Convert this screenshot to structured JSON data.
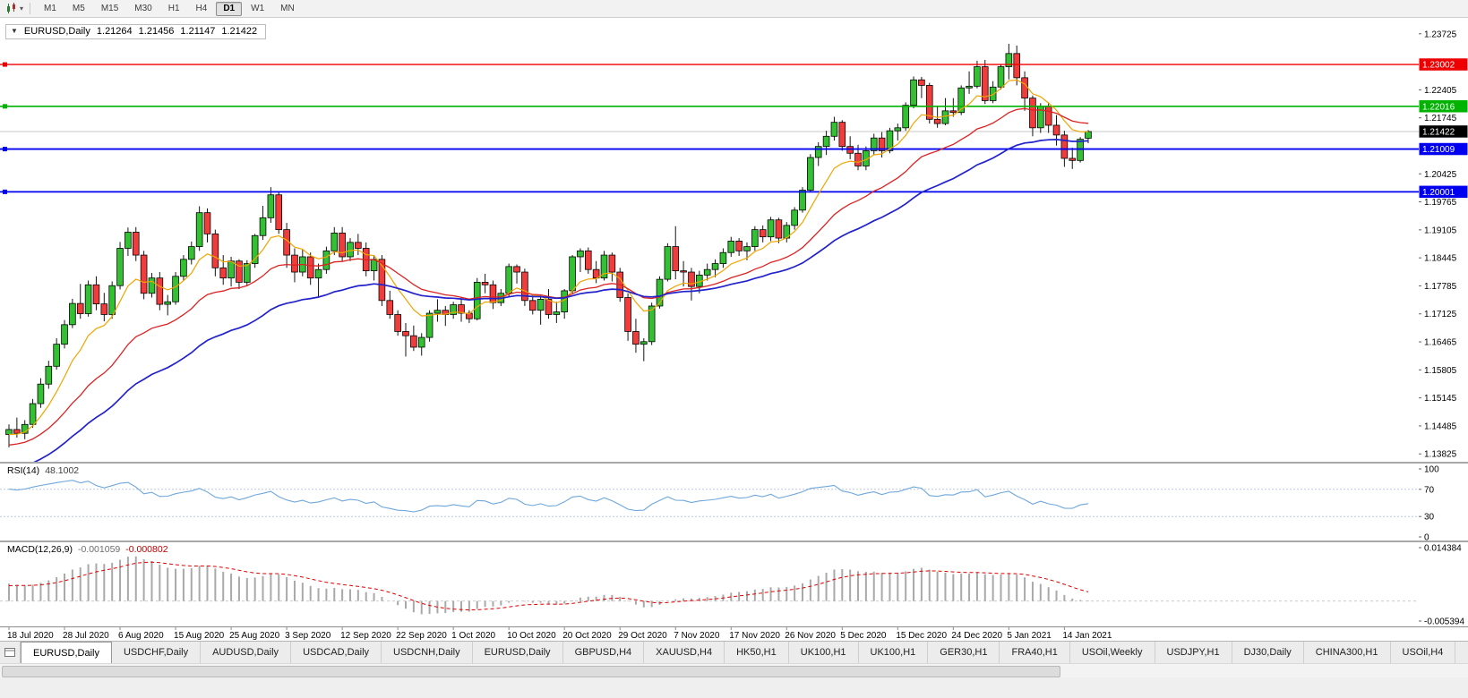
{
  "toolbar": {
    "dropdown_caret": "▾",
    "timeframes": [
      {
        "label": "M1",
        "active": false
      },
      {
        "label": "M5",
        "active": false
      },
      {
        "label": "M15",
        "active": false
      },
      {
        "label": "M30",
        "active": false
      },
      {
        "label": "H1",
        "active": false
      },
      {
        "label": "H4",
        "active": false
      },
      {
        "label": "D1",
        "active": true
      },
      {
        "label": "W1",
        "active": false
      },
      {
        "label": "MN",
        "active": false
      }
    ]
  },
  "chart": {
    "title": {
      "collapse_icon": "▼",
      "symbol_period": "EURUSD,Daily",
      "open": "1.21264",
      "high": "1.21456",
      "low": "1.21147",
      "close": "1.21422"
    },
    "rsi_label": {
      "name": "RSI(14)",
      "value": "48.1002"
    },
    "macd_label": {
      "name": "MACD(12,26,9)",
      "value_main": "-0.001059",
      "value_signal": "-0.000802"
    }
  },
  "chart_data": {
    "type": "candlestick",
    "symbol": "EURUSD",
    "timeframe": "Daily",
    "up_color": "#33c133",
    "down_color": "#f23b3b",
    "x_label_step": 7,
    "x_labels": [
      "18 Jul 2020",
      "28 Jul 2020",
      "6 Aug 2020",
      "15 Aug 2020",
      "25 Aug 2020",
      "3 Sep 2020",
      "12 Sep 2020",
      "22 Sep 2020",
      "1 Oct 2020",
      "10 Oct 2020",
      "20 Oct 2020",
      "29 Oct 2020",
      "7 Nov 2020",
      "17 Nov 2020",
      "26 Nov 2020",
      "5 Dec 2020",
      "15 Dec 2020",
      "24 Dec 2020",
      "5 Jan 2021",
      "14 Jan 2021"
    ],
    "price_axis": {
      "top_price": 1.241,
      "bottom_price": 1.1364,
      "ticks": [
        1.23725,
        1.22405,
        1.21745,
        1.20425,
        1.19765,
        1.19105,
        1.18445,
        1.17785,
        1.17125,
        1.16465,
        1.15805,
        1.15145,
        1.14485,
        1.13825
      ]
    },
    "current_price": 1.21422,
    "current_price_label": "1.21422",
    "current_price_badge_color": "#000000",
    "hlines": [
      {
        "price": 1.23002,
        "label": "1.23002",
        "color": "#ee0000",
        "width": 1.3
      },
      {
        "price": 1.22016,
        "label": "1.22016",
        "color": "#00b300",
        "width": 1.6
      },
      {
        "price": 1.21009,
        "label": "1.21009",
        "color": "#0000f0",
        "width": 1.8
      },
      {
        "price": 1.20001,
        "label": "1.20001",
        "color": "#0000f0",
        "width": 1.8
      }
    ],
    "moving_averages": [
      {
        "name": "ma-fast",
        "color": "#f0a500",
        "period": 8,
        "seed_offset": -0.0015,
        "width": 1.2
      },
      {
        "name": "ma-medium",
        "color": "#dd2222",
        "period": 22,
        "seed_offset": -0.004,
        "width": 1.3
      },
      {
        "name": "ma-slow",
        "color": "#2222cc",
        "period": 40,
        "seed_offset": -0.01,
        "width": 1.7
      }
    ],
    "rsi": {
      "period": 14,
      "color": "#6fa8dc",
      "current": 48.1002,
      "levels": [
        100,
        70,
        30,
        0
      ],
      "level_lines": [
        70,
        30
      ],
      "seed_gain": 0.0028,
      "seed_loss": 0.0012
    },
    "macd": {
      "fast": 12,
      "slow": 26,
      "signal_period": 9,
      "hist_color": "#a9a9a9",
      "signal_color": "#e00000",
      "scale_max": 0.014384,
      "scale_min": -0.005394,
      "scale_labels": [
        "0.014384",
        "-0.005394"
      ],
      "seed_fast_offset": -0.001,
      "seed_slow_offset": -0.006,
      "seed_signal": 0.004,
      "current_main": -0.001059,
      "current_signal": -0.000802
    },
    "candles": [
      [
        1.1428,
        1.1452,
        1.1398,
        1.144
      ],
      [
        1.144,
        1.1468,
        1.1421,
        1.1431
      ],
      [
        1.1431,
        1.1462,
        1.1417,
        1.1452
      ],
      [
        1.1452,
        1.1512,
        1.1444,
        1.1501
      ],
      [
        1.1501,
        1.1561,
        1.1491,
        1.1547
      ],
      [
        1.1547,
        1.1602,
        1.1536,
        1.1589
      ],
      [
        1.1589,
        1.1655,
        1.1581,
        1.1641
      ],
      [
        1.1641,
        1.1698,
        1.1631,
        1.1687
      ],
      [
        1.1687,
        1.1748,
        1.1679,
        1.1737
      ],
      [
        1.1737,
        1.1783,
        1.1701,
        1.1713
      ],
      [
        1.1713,
        1.1791,
        1.1706,
        1.1781
      ],
      [
        1.1781,
        1.1801,
        1.1721,
        1.1736
      ],
      [
        1.1736,
        1.1762,
        1.1695,
        1.1711
      ],
      [
        1.1711,
        1.1789,
        1.1701,
        1.1779
      ],
      [
        1.1779,
        1.1882,
        1.177,
        1.1867
      ],
      [
        1.1867,
        1.1916,
        1.1849,
        1.1905
      ],
      [
        1.1905,
        1.1917,
        1.1837,
        1.1851
      ],
      [
        1.1851,
        1.1861,
        1.1747,
        1.1761
      ],
      [
        1.1761,
        1.1809,
        1.1751,
        1.1797
      ],
      [
        1.1797,
        1.1811,
        1.1721,
        1.1735
      ],
      [
        1.1735,
        1.1757,
        1.1709,
        1.1741
      ],
      [
        1.1741,
        1.1811,
        1.1734,
        1.1801
      ],
      [
        1.1801,
        1.1851,
        1.1791,
        1.1841
      ],
      [
        1.1841,
        1.1883,
        1.1829,
        1.1871
      ],
      [
        1.1871,
        1.1966,
        1.1861,
        1.1951
      ],
      [
        1.1951,
        1.1961,
        1.1881,
        1.1901
      ],
      [
        1.1901,
        1.1911,
        1.1801,
        1.1821
      ],
      [
        1.1821,
        1.1851,
        1.1781,
        1.1797
      ],
      [
        1.1797,
        1.1847,
        1.1777,
        1.1837
      ],
      [
        1.1837,
        1.1841,
        1.1771,
        1.1787
      ],
      [
        1.1787,
        1.1839,
        1.1779,
        1.1831
      ],
      [
        1.1831,
        1.1901,
        1.1821,
        1.1897
      ],
      [
        1.1897,
        1.1967,
        1.1887,
        1.1939
      ],
      [
        1.1939,
        1.2011,
        1.1927,
        1.1993
      ],
      [
        1.1993,
        1.1999,
        1.1901,
        1.1911
      ],
      [
        1.1911,
        1.1927,
        1.1821,
        1.1851
      ],
      [
        1.1851,
        1.1867,
        1.1787,
        1.1811
      ],
      [
        1.1811,
        1.1865,
        1.1801,
        1.1847
      ],
      [
        1.1847,
        1.1857,
        1.1781,
        1.1797
      ],
      [
        1.1797,
        1.1831,
        1.1751,
        1.1817
      ],
      [
        1.1817,
        1.1871,
        1.1807,
        1.1861
      ],
      [
        1.1861,
        1.1917,
        1.1851,
        1.1903
      ],
      [
        1.1903,
        1.1917,
        1.1837,
        1.1847
      ],
      [
        1.1847,
        1.1891,
        1.1837,
        1.1881
      ],
      [
        1.1881,
        1.1901,
        1.1851,
        1.1867
      ],
      [
        1.1867,
        1.1881,
        1.1801,
        1.1814
      ],
      [
        1.1814,
        1.1851,
        1.1791,
        1.1841
      ],
      [
        1.1841,
        1.1851,
        1.1731,
        1.1744
      ],
      [
        1.1744,
        1.1767,
        1.1701,
        1.1711
      ],
      [
        1.1711,
        1.1721,
        1.1661,
        1.1671
      ],
      [
        1.1671,
        1.1691,
        1.1612,
        1.1661
      ],
      [
        1.1661,
        1.1685,
        1.1625,
        1.1634
      ],
      [
        1.1634,
        1.1667,
        1.1614,
        1.1657
      ],
      [
        1.1657,
        1.1721,
        1.1647,
        1.1714
      ],
      [
        1.1714,
        1.1747,
        1.1694,
        1.1721
      ],
      [
        1.1721,
        1.1731,
        1.1684,
        1.1711
      ],
      [
        1.1711,
        1.1741,
        1.1701,
        1.1734
      ],
      [
        1.1734,
        1.1751,
        1.1694,
        1.1714
      ],
      [
        1.1714,
        1.1721,
        1.1691,
        1.1701
      ],
      [
        1.1701,
        1.1797,
        1.1697,
        1.1787
      ],
      [
        1.1787,
        1.1807,
        1.1761,
        1.1781
      ],
      [
        1.1781,
        1.1791,
        1.1724,
        1.1739
      ],
      [
        1.1739,
        1.1771,
        1.1731,
        1.1761
      ],
      [
        1.1761,
        1.1831,
        1.1754,
        1.1824
      ],
      [
        1.1824,
        1.1829,
        1.1784,
        1.1811
      ],
      [
        1.1811,
        1.1819,
        1.1731,
        1.1744
      ],
      [
        1.1744,
        1.1757,
        1.1711,
        1.1721
      ],
      [
        1.1721,
        1.1757,
        1.1687,
        1.1747
      ],
      [
        1.1747,
        1.1771,
        1.1701,
        1.1711
      ],
      [
        1.1711,
        1.1741,
        1.1691,
        1.1717
      ],
      [
        1.1717,
        1.1771,
        1.1701,
        1.1767
      ],
      [
        1.1767,
        1.1851,
        1.1761,
        1.1847
      ],
      [
        1.1847,
        1.1867,
        1.1811,
        1.1861
      ],
      [
        1.1861,
        1.1869,
        1.1807,
        1.1817
      ],
      [
        1.1817,
        1.1837,
        1.1785,
        1.1797
      ],
      [
        1.1797,
        1.1861,
        1.1791,
        1.1851
      ],
      [
        1.1851,
        1.1857,
        1.1789,
        1.1811
      ],
      [
        1.1811,
        1.1821,
        1.1741,
        1.1751
      ],
      [
        1.1751,
        1.1761,
        1.1649,
        1.1671
      ],
      [
        1.1671,
        1.1701,
        1.1621,
        1.1641
      ],
      [
        1.1641,
        1.1655,
        1.1601,
        1.1647
      ],
      [
        1.1647,
        1.1739,
        1.1639,
        1.1731
      ],
      [
        1.1731,
        1.1801,
        1.1725,
        1.1794
      ],
      [
        1.1794,
        1.1879,
        1.1789,
        1.1871
      ],
      [
        1.1871,
        1.1919,
        1.1794,
        1.1814
      ],
      [
        1.1814,
        1.1837,
        1.1777,
        1.1811
      ],
      [
        1.1811,
        1.1821,
        1.1744,
        1.1777
      ],
      [
        1.1777,
        1.1814,
        1.1761,
        1.1804
      ],
      [
        1.1804,
        1.1831,
        1.1791,
        1.1817
      ],
      [
        1.1817,
        1.1841,
        1.1799,
        1.1831
      ],
      [
        1.1831,
        1.1867,
        1.1821,
        1.1857
      ],
      [
        1.1857,
        1.1894,
        1.1847,
        1.1884
      ],
      [
        1.1884,
        1.1891,
        1.1849,
        1.1861
      ],
      [
        1.1861,
        1.1881,
        1.1839,
        1.1871
      ],
      [
        1.1871,
        1.1919,
        1.1861,
        1.1911
      ],
      [
        1.1911,
        1.1921,
        1.1881,
        1.1894
      ],
      [
        1.1894,
        1.1941,
        1.1884,
        1.1934
      ],
      [
        1.1934,
        1.1939,
        1.1879,
        1.1891
      ],
      [
        1.1891,
        1.1929,
        1.1881,
        1.1921
      ],
      [
        1.1921,
        1.1964,
        1.1911,
        1.1957
      ],
      [
        1.1957,
        1.2011,
        1.1951,
        1.2004
      ],
      [
        1.2004,
        1.2089,
        1.1999,
        1.2081
      ],
      [
        1.2081,
        1.2117,
        1.2061,
        1.2107
      ],
      [
        1.2107,
        1.2144,
        1.2087,
        1.2131
      ],
      [
        1.2131,
        1.2177,
        1.2121,
        1.2164
      ],
      [
        1.2164,
        1.2169,
        1.2097,
        1.2107
      ],
      [
        1.2107,
        1.2131,
        1.2077,
        1.2091
      ],
      [
        1.2091,
        1.2111,
        1.2051,
        1.2061
      ],
      [
        1.2061,
        1.2107,
        1.2051,
        1.2097
      ],
      [
        1.2097,
        1.2137,
        1.2087,
        1.2127
      ],
      [
        1.2127,
        1.2141,
        1.2081,
        1.2097
      ],
      [
        1.2097,
        1.2151,
        1.2091,
        1.2144
      ],
      [
        1.2144,
        1.2161,
        1.2121,
        1.2151
      ],
      [
        1.2151,
        1.2211,
        1.2144,
        1.2204
      ],
      [
        1.2204,
        1.2272,
        1.2197,
        1.2264
      ],
      [
        1.2264,
        1.2271,
        1.2221,
        1.2251
      ],
      [
        1.2251,
        1.2257,
        1.2161,
        1.2171
      ],
      [
        1.2171,
        1.2201,
        1.2151,
        1.2161
      ],
      [
        1.2161,
        1.2221,
        1.2157,
        1.2191
      ],
      [
        1.2191,
        1.2221,
        1.2177,
        1.2187
      ],
      [
        1.2187,
        1.2251,
        1.2181,
        1.2245
      ],
      [
        1.2245,
        1.2284,
        1.2231,
        1.2249
      ],
      [
        1.2249,
        1.2309,
        1.2244,
        1.2295
      ],
      [
        1.2295,
        1.2311,
        1.2207,
        1.2215
      ],
      [
        1.2215,
        1.2261,
        1.2209,
        1.2247
      ],
      [
        1.2247,
        1.2301,
        1.2241,
        1.2295
      ],
      [
        1.2295,
        1.2349,
        1.2265,
        1.2326
      ],
      [
        1.2326,
        1.2345,
        1.2251,
        1.2269
      ],
      [
        1.2269,
        1.2284,
        1.2191,
        1.2221
      ],
      [
        1.2221,
        1.2227,
        1.2131,
        1.2151
      ],
      [
        1.2151,
        1.2209,
        1.2139,
        1.2201
      ],
      [
        1.2201,
        1.2211,
        1.2139,
        1.2157
      ],
      [
        1.2157,
        1.2181,
        1.2109,
        1.2134
      ],
      [
        1.2134,
        1.2144,
        1.2059,
        1.2079
      ],
      [
        1.2079,
        1.2104,
        1.2054,
        1.2074
      ],
      [
        1.2074,
        1.2129,
        1.2069,
        1.2124
      ],
      [
        1.21264,
        1.21456,
        1.21147,
        1.21422
      ]
    ]
  },
  "tabs": {
    "items": [
      {
        "label": "EURUSD,Daily",
        "active": true
      },
      {
        "label": "USDCHF,Daily",
        "active": false
      },
      {
        "label": "AUDUSD,Daily",
        "active": false
      },
      {
        "label": "USDCAD,Daily",
        "active": false
      },
      {
        "label": "USDCNH,Daily",
        "active": false
      },
      {
        "label": "EURUSD,Daily",
        "active": false
      },
      {
        "label": "GBPUSD,H4",
        "active": false
      },
      {
        "label": "XAUUSD,H4",
        "active": false
      },
      {
        "label": "HK50,H1",
        "active": false
      },
      {
        "label": "UK100,H1",
        "active": false
      },
      {
        "label": "UK100,H1",
        "active": false
      },
      {
        "label": "GER30,H1",
        "active": false
      },
      {
        "label": "FRA40,H1",
        "active": false
      },
      {
        "label": "USOil,Weekly",
        "active": false
      },
      {
        "label": "USDJPY,H1",
        "active": false
      },
      {
        "label": "DJ30,Daily",
        "active": false
      },
      {
        "label": "CHINA300,H1",
        "active": false
      },
      {
        "label": "USOil,H4",
        "active": false
      }
    ]
  }
}
